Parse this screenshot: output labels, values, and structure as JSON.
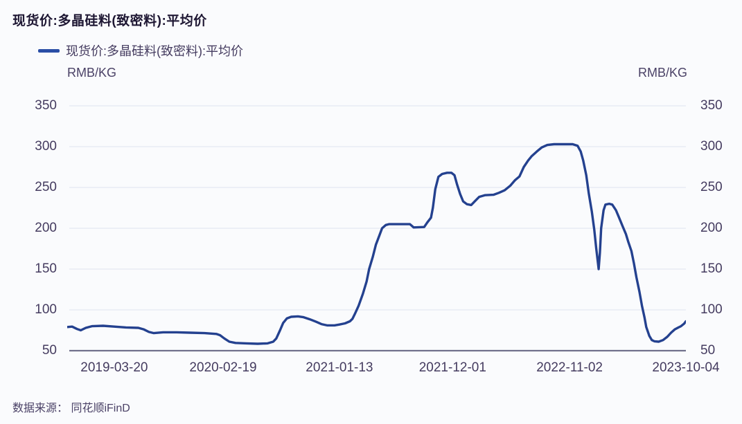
{
  "page": {
    "title": "现货价:多晶硅料(致密料):平均价"
  },
  "legend": {
    "label": "现货价:多晶硅料(致密料):平均价"
  },
  "axes": {
    "unit_left": "RMB/KG",
    "unit_right": "RMB/KG"
  },
  "footer": {
    "source": "数据来源： 同花顺iFinD"
  },
  "colors": {
    "background": "#fafbfd",
    "title_text": "#1e1733",
    "axis_text": "#443b5f",
    "line": "#24418f",
    "legend_marker": "#2a4ea6",
    "gridline": "#e7ebf3",
    "axis_baseline": "#70708c"
  },
  "chart_data": {
    "type": "line",
    "title": "现货价:多晶硅料(致密料):平均价",
    "xlabel": "",
    "ylabel": "RMB/KG",
    "ylim": [
      50,
      350
    ],
    "y_ticks": [
      350,
      300,
      250,
      200,
      150,
      100,
      50
    ],
    "grid": "horizontal",
    "legend_position": "top-left",
    "x_ticks": [
      {
        "label": "2019-03-20",
        "pos": 0.076
      },
      {
        "label": "2020-02-19",
        "pos": 0.252
      },
      {
        "label": "2021-01-13",
        "pos": 0.44
      },
      {
        "label": "2021-12-01",
        "pos": 0.623
      },
      {
        "label": "2022-11-02",
        "pos": 0.812
      },
      {
        "label": "2023-10-04",
        "pos": 1.0
      }
    ],
    "series": [
      {
        "name": "现货价:多晶硅料(致密料):平均价",
        "color": "#24418f",
        "unit": "RMB/KG",
        "points": [
          [
            0.0,
            79
          ],
          [
            0.008,
            79.5
          ],
          [
            0.016,
            76.5
          ],
          [
            0.022,
            75
          ],
          [
            0.03,
            78
          ],
          [
            0.04,
            80
          ],
          [
            0.058,
            80.5
          ],
          [
            0.076,
            79.5
          ],
          [
            0.095,
            78.5
          ],
          [
            0.115,
            78
          ],
          [
            0.124,
            76
          ],
          [
            0.132,
            73
          ],
          [
            0.14,
            71.5
          ],
          [
            0.155,
            72.5
          ],
          [
            0.177,
            72.5
          ],
          [
            0.199,
            72
          ],
          [
            0.222,
            71.5
          ],
          [
            0.241,
            70.5
          ],
          [
            0.247,
            69
          ],
          [
            0.254,
            65
          ],
          [
            0.262,
            61
          ],
          [
            0.272,
            59.5
          ],
          [
            0.289,
            59
          ],
          [
            0.308,
            58.5
          ],
          [
            0.324,
            59
          ],
          [
            0.333,
            61
          ],
          [
            0.338,
            65
          ],
          [
            0.344,
            75
          ],
          [
            0.349,
            84
          ],
          [
            0.355,
            89.5
          ],
          [
            0.362,
            91.5
          ],
          [
            0.373,
            92
          ],
          [
            0.382,
            91
          ],
          [
            0.392,
            88.5
          ],
          [
            0.402,
            85.5
          ],
          [
            0.411,
            82.5
          ],
          [
            0.42,
            81
          ],
          [
            0.432,
            81
          ],
          [
            0.44,
            82
          ],
          [
            0.449,
            83.5
          ],
          [
            0.457,
            86
          ],
          [
            0.461,
            89
          ],
          [
            0.465,
            95
          ],
          [
            0.471,
            105
          ],
          [
            0.478,
            120
          ],
          [
            0.484,
            135
          ],
          [
            0.488,
            150
          ],
          [
            0.494,
            165
          ],
          [
            0.499,
            180
          ],
          [
            0.505,
            192
          ],
          [
            0.509,
            200
          ],
          [
            0.515,
            204
          ],
          [
            0.52,
            205
          ],
          [
            0.554,
            205
          ],
          [
            0.56,
            201
          ],
          [
            0.577,
            201.5
          ],
          [
            0.582,
            207
          ],
          [
            0.588,
            213
          ],
          [
            0.591,
            225
          ],
          [
            0.595,
            248
          ],
          [
            0.6,
            263
          ],
          [
            0.606,
            266.5
          ],
          [
            0.614,
            268
          ],
          [
            0.621,
            268
          ],
          [
            0.626,
            265
          ],
          [
            0.63,
            254
          ],
          [
            0.635,
            242
          ],
          [
            0.64,
            233
          ],
          [
            0.646,
            229.5
          ],
          [
            0.653,
            228.5
          ],
          [
            0.66,
            234
          ],
          [
            0.666,
            238.5
          ],
          [
            0.675,
            240.5
          ],
          [
            0.689,
            241
          ],
          [
            0.698,
            243.5
          ],
          [
            0.707,
            246.5
          ],
          [
            0.716,
            252
          ],
          [
            0.724,
            259
          ],
          [
            0.731,
            263.5
          ],
          [
            0.738,
            275
          ],
          [
            0.745,
            283
          ],
          [
            0.751,
            288.5
          ],
          [
            0.759,
            294
          ],
          [
            0.767,
            299
          ],
          [
            0.776,
            302
          ],
          [
            0.787,
            303
          ],
          [
            0.804,
            303
          ],
          [
            0.817,
            303
          ],
          [
            0.825,
            301
          ],
          [
            0.83,
            294
          ],
          [
            0.834,
            283
          ],
          [
            0.839,
            265
          ],
          [
            0.843,
            243
          ],
          [
            0.848,
            220
          ],
          [
            0.852,
            198
          ],
          [
            0.855,
            176
          ],
          [
            0.859,
            150
          ],
          [
            0.861,
            170
          ],
          [
            0.863,
            200
          ],
          [
            0.867,
            222
          ],
          [
            0.87,
            229
          ],
          [
            0.876,
            230
          ],
          [
            0.881,
            229
          ],
          [
            0.887,
            222
          ],
          [
            0.892,
            213
          ],
          [
            0.898,
            202
          ],
          [
            0.903,
            193
          ],
          [
            0.907,
            183
          ],
          [
            0.912,
            172
          ],
          [
            0.916,
            157
          ],
          [
            0.92,
            140
          ],
          [
            0.925,
            122
          ],
          [
            0.929,
            105
          ],
          [
            0.933,
            91
          ],
          [
            0.936,
            79
          ],
          [
            0.941,
            68
          ],
          [
            0.945,
            63
          ],
          [
            0.949,
            61.5
          ],
          [
            0.956,
            61
          ],
          [
            0.963,
            63
          ],
          [
            0.97,
            67
          ],
          [
            0.976,
            72
          ],
          [
            0.982,
            76
          ],
          [
            0.988,
            78.5
          ],
          [
            0.992,
            80
          ],
          [
            0.997,
            83
          ],
          [
            1.0,
            86
          ]
        ]
      }
    ]
  }
}
